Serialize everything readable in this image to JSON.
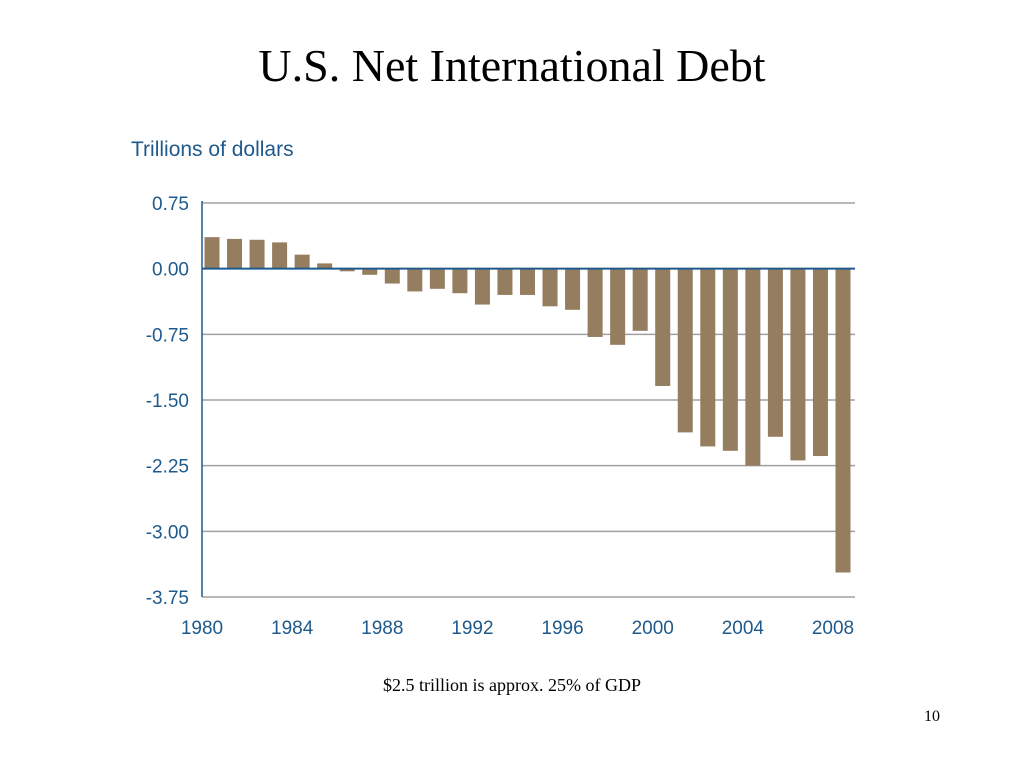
{
  "slide": {
    "title": "U.S. Net International Debt",
    "caption": "$2.5 trillion is approx. 25% of GDP",
    "page_number": "10"
  },
  "colors": {
    "bar": "#957d60",
    "axis_text": "#1f5a8c",
    "gridline": "#a0a0a0",
    "zero_line": "#1f5a8c"
  },
  "chart_data": {
    "type": "bar",
    "ylabel": "Trillions of dollars",
    "xlabel": "",
    "title": "",
    "ylim": [
      -3.75,
      0.75
    ],
    "yticks": [
      0.75,
      0.0,
      -0.75,
      -1.5,
      -2.25,
      -3.0,
      -3.75
    ],
    "ytick_labels": [
      "0.75",
      "0.00",
      "-0.75",
      "-1.50",
      "-2.25",
      "-3.00",
      "-3.75"
    ],
    "xtick_labels": [
      "1980",
      "1984",
      "1988",
      "1992",
      "1996",
      "2000",
      "2004",
      "2008"
    ],
    "grid": true,
    "categories": [
      "1980",
      "1981",
      "1982",
      "1983",
      "1984",
      "1985",
      "1986",
      "1987",
      "1988",
      "1989",
      "1990",
      "1991",
      "1992",
      "1993",
      "1994",
      "1995",
      "1996",
      "1997",
      "1998",
      "1999",
      "2000",
      "2001",
      "2002",
      "2003",
      "2004",
      "2005",
      "2006",
      "2007",
      "2008"
    ],
    "values": [
      0.36,
      0.34,
      0.33,
      0.3,
      0.16,
      0.06,
      -0.03,
      -0.07,
      -0.17,
      -0.26,
      -0.23,
      -0.28,
      -0.41,
      -0.3,
      -0.3,
      -0.43,
      -0.47,
      -0.78,
      -0.87,
      -0.71,
      -1.34,
      -1.87,
      -2.03,
      -2.08,
      -2.25,
      -1.92,
      -2.19,
      -2.14,
      -3.47
    ]
  }
}
